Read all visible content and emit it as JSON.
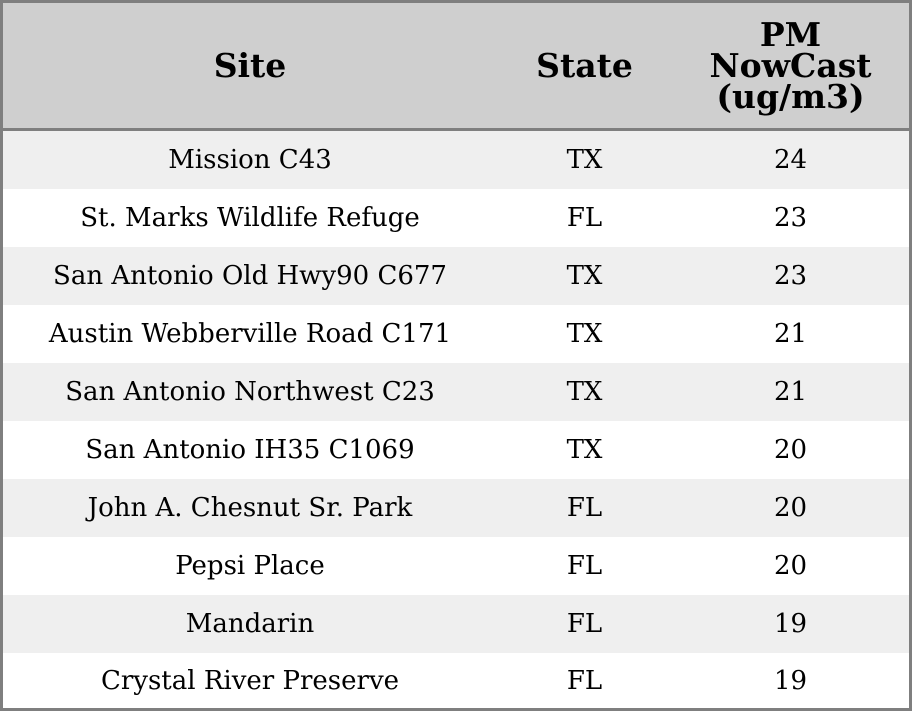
{
  "chart_data": {
    "type": "table",
    "columns": [
      "Site",
      "State",
      "PM\nNowCast\n(ug/m3)"
    ],
    "rows": [
      [
        "Mission C43",
        "TX",
        "24"
      ],
      [
        "St. Marks Wildlife Refuge",
        "FL",
        "23"
      ],
      [
        "San Antonio Old Hwy90 C677",
        "TX",
        "23"
      ],
      [
        "Austin Webberville Road C171",
        "TX",
        "21"
      ],
      [
        "San Antonio Northwest C23",
        "TX",
        "21"
      ],
      [
        "San Antonio IH35 C1069",
        "TX",
        "20"
      ],
      [
        "John A. Chesnut Sr. Park",
        "FL",
        "20"
      ],
      [
        "Pepsi Place",
        "FL",
        "20"
      ],
      [
        "Mandarin",
        "FL",
        "19"
      ],
      [
        "Crystal River Preserve",
        "FL",
        "19"
      ]
    ],
    "colors": {
      "header_background": "#cfcfcf",
      "row_stripe": "#efefef",
      "row_plain": "#ffffff",
      "border": "#7f7f7f"
    }
  }
}
